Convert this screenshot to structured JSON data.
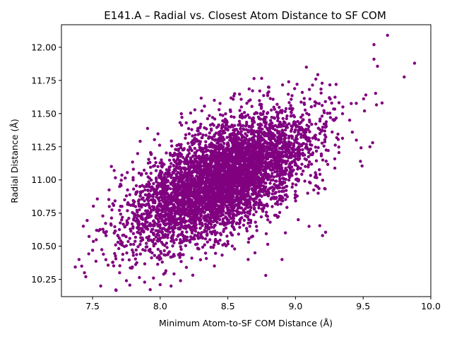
{
  "chart_data": {
    "type": "scatter",
    "title": "E141.A – Radial vs. Closest Atom Distance to SF COM",
    "xlabel": "Minimum Atom-to-SF COM Distance (Å)",
    "ylabel": "Radial Distance (Å)",
    "xlim": [
      7.27,
      10.0
    ],
    "ylim": [
      10.12,
      12.17
    ],
    "xticks": [
      7.5,
      8.0,
      8.5,
      9.0,
      9.5,
      10.0
    ],
    "xtick_labels": [
      "7.5",
      "8.0",
      "8.5",
      "9.0",
      "9.5",
      "10.0"
    ],
    "yticks": [
      10.25,
      10.5,
      10.75,
      11.0,
      11.25,
      11.5,
      11.75,
      12.0
    ],
    "ytick_labels": [
      "10.25",
      "10.50",
      "10.75",
      "11.00",
      "11.25",
      "11.50",
      "11.75",
      "12.00"
    ],
    "grid": false,
    "marker_color": "#800080",
    "cluster": {
      "mean_x": 8.45,
      "mean_y": 11.0,
      "sd_x": 0.33,
      "sd_y": 0.25,
      "correlation": 0.6,
      "n_points": 5000
    },
    "outliers": [
      {
        "x": 9.68,
        "y": 12.09
      },
      {
        "x": 9.58,
        "y": 12.02
      },
      {
        "x": 9.58,
        "y": 11.91
      },
      {
        "x": 9.88,
        "y": 11.88
      },
      {
        "x": 9.08,
        "y": 11.85
      },
      {
        "x": 9.64,
        "y": 11.58
      },
      {
        "x": 9.52,
        "y": 11.64
      },
      {
        "x": 9.51,
        "y": 11.52
      },
      {
        "x": 9.57,
        "y": 11.28
      },
      {
        "x": 9.55,
        "y": 11.25
      },
      {
        "x": 9.45,
        "y": 11.3
      },
      {
        "x": 9.48,
        "y": 11.14
      },
      {
        "x": 9.15,
        "y": 11.76
      },
      {
        "x": 9.3,
        "y": 11.72
      },
      {
        "x": 9.25,
        "y": 11.62
      },
      {
        "x": 9.35,
        "y": 11.55
      },
      {
        "x": 9.4,
        "y": 11.45
      },
      {
        "x": 9.42,
        "y": 11.36
      },
      {
        "x": 8.95,
        "y": 11.74
      },
      {
        "x": 8.8,
        "y": 11.7
      },
      {
        "x": 9.05,
        "y": 11.66
      },
      {
        "x": 8.55,
        "y": 11.65
      },
      {
        "x": 8.4,
        "y": 11.6
      },
      {
        "x": 8.6,
        "y": 11.55
      },
      {
        "x": 7.4,
        "y": 10.4
      },
      {
        "x": 7.42,
        "y": 10.35
      },
      {
        "x": 7.44,
        "y": 10.3
      },
      {
        "x": 7.45,
        "y": 10.27
      },
      {
        "x": 7.56,
        "y": 10.2
      },
      {
        "x": 7.58,
        "y": 10.44
      },
      {
        "x": 7.53,
        "y": 10.62
      },
      {
        "x": 7.6,
        "y": 10.58
      },
      {
        "x": 7.5,
        "y": 10.47
      },
      {
        "x": 7.65,
        "y": 10.38
      },
      {
        "x": 7.7,
        "y": 10.3
      },
      {
        "x": 7.75,
        "y": 10.24
      },
      {
        "x": 7.95,
        "y": 10.26
      },
      {
        "x": 8.0,
        "y": 10.21
      },
      {
        "x": 8.08,
        "y": 10.2
      },
      {
        "x": 8.15,
        "y": 10.24
      },
      {
        "x": 8.78,
        "y": 10.28
      },
      {
        "x": 8.9,
        "y": 10.4
      },
      {
        "x": 9.2,
        "y": 10.58
      },
      {
        "x": 9.1,
        "y": 10.65
      },
      {
        "x": 9.02,
        "y": 10.7
      },
      {
        "x": 8.65,
        "y": 10.4
      },
      {
        "x": 8.7,
        "y": 10.45
      },
      {
        "x": 8.55,
        "y": 10.48
      },
      {
        "x": 7.7,
        "y": 10.95
      },
      {
        "x": 7.75,
        "y": 10.88
      },
      {
        "x": 7.65,
        "y": 10.82
      },
      {
        "x": 7.8,
        "y": 11.0
      },
      {
        "x": 7.85,
        "y": 10.95
      },
      {
        "x": 7.97,
        "y": 11.07
      }
    ]
  }
}
